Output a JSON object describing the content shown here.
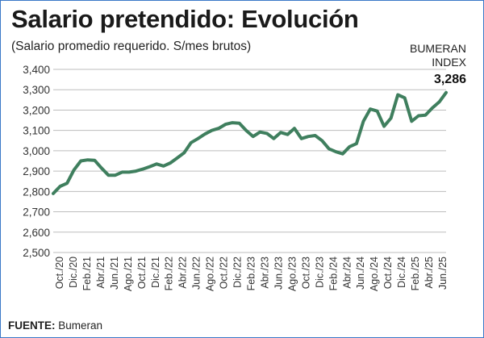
{
  "title": "Salario pretendido: Evolución",
  "subtitle": "(Salario promedio requerido. S/mes brutos)",
  "index_label_line1": "BUMERAN",
  "index_label_line2": "INDEX",
  "index_value": "3,286",
  "source_label": "FUENTE:",
  "source_value": "Bumeran",
  "colors": {
    "line": "#3f7f5e",
    "grid": "#bdbdbd",
    "text": "#222222",
    "frame": "#3a78c8"
  },
  "chart_data": {
    "type": "line",
    "ylim": [
      2500,
      3400
    ],
    "yticks": [
      2500,
      2600,
      2700,
      2800,
      2900,
      3000,
      3100,
      3200,
      3300,
      3400
    ],
    "ytick_labels": [
      "2,500",
      "2,600",
      "2,700",
      "2,800",
      "2,900",
      "3,000",
      "3,100",
      "3,200",
      "3,300",
      "3,400"
    ],
    "x_labels": [
      "Oct./20",
      "Dic./20",
      "Feb./21",
      "Abr./21",
      "Jun./21",
      "Ago./21",
      "Oct./21",
      "Dic./21",
      "Feb./22",
      "Abr./22",
      "Jun./22",
      "Ago./22",
      "Oct./22",
      "Dic./22",
      "Feb./23",
      "Abr./23",
      "Jun./23",
      "Ago./23",
      "Oct./23",
      "Dic./23",
      "Feb./24",
      "Abr./24",
      "Jun./24",
      "Ago./24",
      "Oct./24",
      "Dic./24",
      "Feb./25",
      "Abr./25",
      "Jun./25"
    ],
    "grid": "horizontal",
    "series": [
      {
        "values": [
          2790,
          2825,
          2840,
          2905,
          2950,
          2955,
          2953,
          2915,
          2880,
          2880,
          2895,
          2895,
          2900,
          2910,
          2922,
          2935,
          2925,
          2940,
          2965,
          2990,
          3040,
          3060,
          3082,
          3100,
          3110,
          3130,
          3138,
          3135,
          3100,
          3070,
          3092,
          3085,
          3060,
          3090,
          3080,
          3110,
          3060,
          3070,
          3075,
          3050,
          3010,
          2995,
          2985,
          3020,
          3035,
          3145,
          3205,
          3195,
          3120,
          3160,
          3275,
          3260,
          3145,
          3172,
          3175,
          3210,
          3240,
          3286
        ]
      }
    ]
  }
}
